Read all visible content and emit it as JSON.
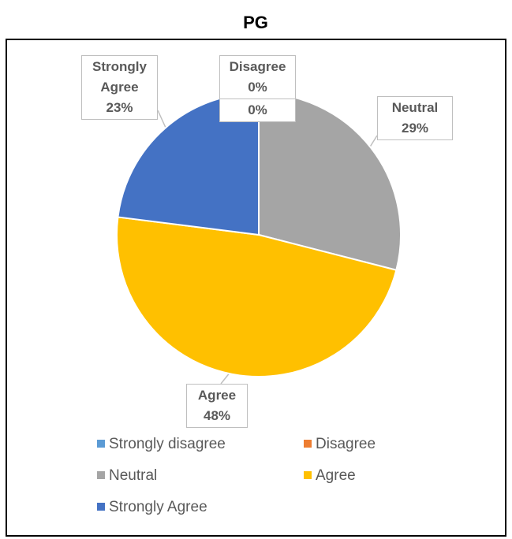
{
  "chart_data": {
    "type": "pie",
    "title": "PG",
    "categories": [
      "Strongly disagree",
      "Disagree",
      "Neutral",
      "Agree",
      "Strongly Agree"
    ],
    "values": [
      0,
      0,
      29,
      48,
      23
    ],
    "value_labels": [
      "0%",
      "0%",
      "29%",
      "48%",
      "23%"
    ],
    "colors": [
      "#5b9bd5",
      "#ed7d31",
      "#a5a5a5",
      "#ffc000",
      "#4472c4"
    ],
    "legend": "bottom"
  }
}
